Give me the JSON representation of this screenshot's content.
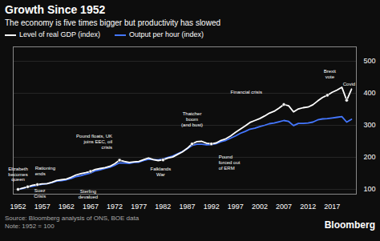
{
  "chart_data": {
    "type": "line",
    "title": "Growth Since 1952",
    "subtitle": "The economy is five times bigger but productivity has slowed",
    "x": [
      1952,
      1953,
      1954,
      1955,
      1956,
      1957,
      1958,
      1959,
      1960,
      1961,
      1962,
      1963,
      1964,
      1965,
      1966,
      1967,
      1968,
      1969,
      1970,
      1971,
      1972,
      1973,
      1974,
      1975,
      1976,
      1977,
      1978,
      1979,
      1980,
      1981,
      1982,
      1983,
      1984,
      1985,
      1986,
      1987,
      1988,
      1989,
      1990,
      1991,
      1992,
      1993,
      1994,
      1995,
      1996,
      1997,
      1998,
      1999,
      2000,
      2001,
      2002,
      2003,
      2004,
      2005,
      2006,
      2007,
      2008,
      2009,
      2010,
      2011,
      2012,
      2013,
      2014,
      2015,
      2016,
      2017,
      2018,
      2019,
      2020,
      2021
    ],
    "series": [
      {
        "name": "Level of real GDP (index)",
        "color": "#ffffff",
        "values": [
          100,
          104,
          108,
          113,
          115,
          117,
          118,
          122,
          128,
          130,
          132,
          138,
          145,
          149,
          152,
          156,
          162,
          165,
          168,
          172,
          180,
          191,
          187,
          184,
          186,
          187,
          193,
          198,
          193,
          190,
          192,
          198,
          201,
          209,
          217,
          228,
          242,
          249,
          250,
          244,
          242,
          245,
          253,
          258,
          267,
          278,
          288,
          298,
          309,
          315,
          321,
          329,
          338,
          344,
          354,
          365,
          361,
          342,
          351,
          355,
          357,
          364,
          376,
          387,
          394,
          403,
          410,
          419,
          378,
          413
        ]
      },
      {
        "name": "Output per hour (index)",
        "color": "#4477ff",
        "values": [
          100,
          103,
          107,
          110,
          113,
          116,
          118,
          121,
          126,
          127,
          130,
          134,
          140,
          143,
          147,
          151,
          158,
          161,
          165,
          169,
          175,
          183,
          182,
          181,
          184,
          185,
          190,
          194,
          193,
          192,
          195,
          200,
          204,
          211,
          218,
          227,
          237,
          241,
          241,
          239,
          240,
          243,
          249,
          253,
          260,
          267,
          275,
          281,
          288,
          291,
          296,
          300,
          305,
          307,
          311,
          315,
          312,
          299,
          306,
          306,
          307,
          310,
          317,
          320,
          321,
          323,
          325,
          327,
          310,
          319
        ]
      }
    ],
    "xlim": [
      1951,
      2022
    ],
    "xticks": [
      1952,
      1957,
      1962,
      1967,
      1972,
      1977,
      1982,
      1987,
      1992,
      1997,
      2002,
      2007,
      2012,
      2017
    ],
    "ylim": [
      85,
      545
    ],
    "yticks": [
      100,
      200,
      300,
      400,
      500
    ],
    "grid": true,
    "legend": "top left",
    "annotations": [
      {
        "text": "Elizabeth\nbecomes\nqueen",
        "x": 1952,
        "y": 100,
        "tx": 1952.0,
        "ty": 148
      },
      {
        "text": "Rationing\nends",
        "x": 1954,
        "y": 108,
        "tx": 1955.5,
        "ty": 158
      },
      {
        "text": "Suez\nCrisis",
        "x": 1956,
        "y": 115,
        "tx": 1956.5,
        "ty": 87
      },
      {
        "text": "Sterling\ndevalued",
        "x": 1967,
        "y": 156,
        "tx": 1966.5,
        "ty": 86
      },
      {
        "text": "Pound floats, UK\njoins EEC, oil\ncrisis",
        "x": 1973,
        "y": 191,
        "tx": 1971.5,
        "ty": 250
      },
      {
        "text": "Falklands\nWar",
        "x": 1982,
        "y": 192,
        "tx": 1981.5,
        "ty": 156
      },
      {
        "text": "Thatcher\nboom\n(and bust)",
        "x": 1988,
        "y": 242,
        "tx": 1988.0,
        "ty": 320
      },
      {
        "text": "Pound\nforced out\nof ERM",
        "x": 1992,
        "y": 242,
        "tx": 1993.5,
        "ty": 185
      },
      {
        "text": "Financial crisis",
        "x": 2007,
        "y": 365,
        "tx": 2002.5,
        "ty": 405
      },
      {
        "text": "Brexit\nvote",
        "x": 2016,
        "y": 394,
        "tx": 2016.5,
        "ty": 460
      },
      {
        "text": "Covid",
        "x": 2020,
        "y": 378,
        "tx": 2020.5,
        "ty": 430
      }
    ],
    "source": "Source: Bloomberg analysis of ONS, BOE data\nNote: 1952 = 100",
    "branding": "Bloomberg"
  }
}
